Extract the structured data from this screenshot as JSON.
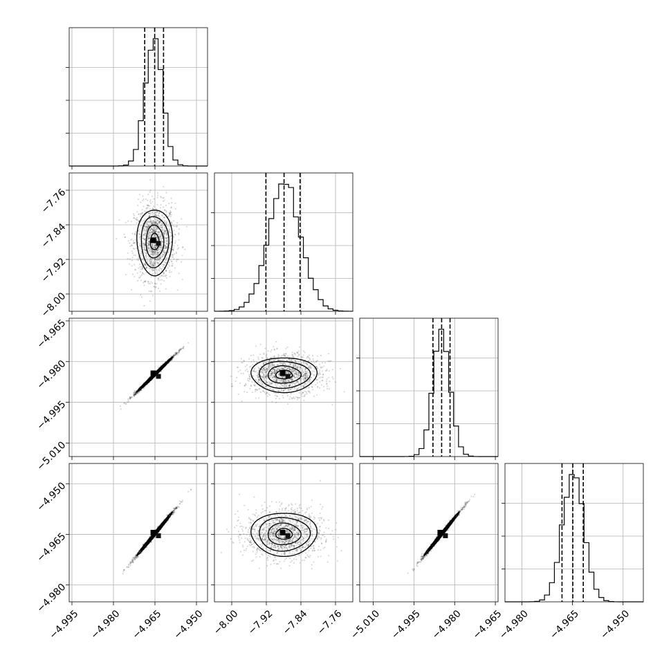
{
  "chart_data": {
    "type": "corner",
    "n_params": 4,
    "grid": true,
    "params": [
      {
        "range": [
          -4.996,
          -4.946
        ],
        "ticks": [
          -4.995,
          -4.98,
          -4.965,
          -4.95
        ],
        "tick_labels": [
          "−4.995",
          "−4.980",
          "−4.965",
          "−4.950"
        ],
        "quantiles": [
          -4.9687,
          -4.9651,
          -4.9619
        ],
        "hist_peak": -4.9655,
        "hist_sd": 0.0032
      },
      {
        "range": [
          -8.04,
          -7.72
        ],
        "ticks": [
          -8.0,
          -7.92,
          -7.84,
          -7.76
        ],
        "tick_labels": [
          "−8.00",
          "−7.92",
          "−7.84",
          "−7.76"
        ],
        "quantiles": [
          -7.921,
          -7.879,
          -7.842
        ],
        "hist_peak": -7.878,
        "hist_sd": 0.038
      },
      {
        "range": [
          -5.015,
          -4.964
        ],
        "ticks": [
          -5.01,
          -4.995,
          -4.98,
          -4.965
        ],
        "tick_labels": [
          "−5.010",
          "−4.995",
          "−4.980",
          "−4.965"
        ],
        "quantiles": [
          -4.988,
          -4.9848,
          -4.9817
        ],
        "hist_peak": -4.9848,
        "hist_sd": 0.0032
      },
      {
        "range": [
          -4.985,
          -4.944
        ],
        "ticks": [
          -4.98,
          -4.965,
          -4.95
        ],
        "tick_labels": [
          "−4.980",
          "−4.965",
          "−4.950"
        ],
        "quantiles": [
          -4.9681,
          -4.9649,
          -4.9618
        ],
        "hist_peak": -4.9648,
        "hist_sd": 0.0032
      }
    ],
    "correlations": {
      "1,0": 0.0,
      "2,0": 0.995,
      "2,1": 0.0,
      "3,0": 0.995,
      "3,1": 0.0,
      "3,2": 0.995
    }
  }
}
